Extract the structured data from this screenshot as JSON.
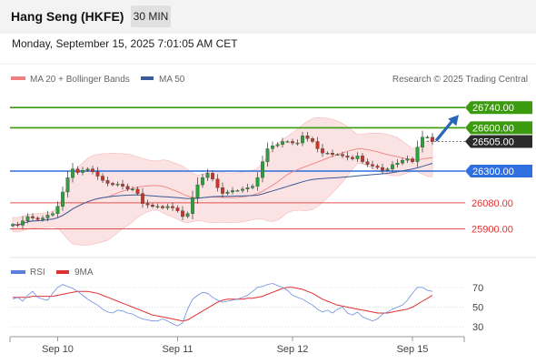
{
  "header": {
    "title": "Hang Seng (HKFE)",
    "timeframe": "30 MIN",
    "datetime": "Monday, September 15, 2025 7:01:05 AM CET"
  },
  "chart_data": [
    {
      "type": "candlestick",
      "title": "Hang Seng (HKFE)",
      "legend": [
        {
          "name": "MA 20 + Bollinger Bands",
          "color": "#f08080"
        },
        {
          "name": "MA 50",
          "color": "#3a5a9a"
        }
      ],
      "credit": "Research © 2025 Trading Central",
      "x_labels": [
        "Sep 10",
        "Sep 11",
        "Sep 12",
        "Sep 15"
      ],
      "y_range": [
        25720,
        26880
      ],
      "grid": false,
      "levels": [
        {
          "label": "26740.00",
          "value": 26740,
          "kind": "resistance",
          "color": "#3c9a0e"
        },
        {
          "label": "26600.00",
          "value": 26600,
          "kind": "resistance",
          "color": "#3c9a0e"
        },
        {
          "label": "26505.00",
          "value": 26505,
          "kind": "last",
          "color": "#2a2a2a"
        },
        {
          "label": "26300.00",
          "value": 26300,
          "kind": "pivot",
          "color": "#2f6fe0"
        },
        {
          "label": "26080.00",
          "value": 26080,
          "kind": "support",
          "color": "#e05050"
        },
        {
          "label": "25900.00",
          "value": 25900,
          "kind": "support",
          "color": "#e05050"
        }
      ],
      "closes": [
        25930,
        25925,
        25955,
        25985,
        25975,
        25965,
        25975,
        25995,
        26005,
        26055,
        26155,
        26255,
        26315,
        26290,
        26305,
        26315,
        26295,
        26265,
        26235,
        26215,
        26205,
        26210,
        26195,
        26175,
        26175,
        26145,
        26075,
        26065,
        26055,
        26055,
        26045,
        26055,
        26045,
        26025,
        25985,
        26005,
        26115,
        26205,
        26255,
        26285,
        26245,
        26185,
        26145,
        26155,
        26165,
        26165,
        26175,
        26185,
        26195,
        26255,
        26365,
        26455,
        26475,
        26485,
        26505,
        26505,
        26495,
        26495,
        26545,
        26525,
        26505,
        26455,
        26425,
        26425,
        26415,
        26415,
        26405,
        26395,
        26385,
        26405,
        26365,
        26345,
        26335,
        26325,
        26305,
        26315,
        26345,
        26355,
        26375,
        26385,
        26365,
        26465,
        26535,
        26535,
        26505
      ],
      "forecast_arrow": {
        "from": 26510,
        "to": 26740
      }
    },
    {
      "type": "line",
      "title": "RSI",
      "series": [
        {
          "name": "RSI",
          "color": "#5b7fd6"
        },
        {
          "name": "9MA",
          "color": "#e03030"
        }
      ],
      "y_ticks": [
        70,
        50,
        30
      ],
      "y_range": [
        20,
        80
      ],
      "rsi": [
        58,
        60,
        56,
        62,
        66,
        60,
        58,
        57,
        64,
        70,
        73,
        71,
        69,
        66,
        62,
        58,
        55,
        52,
        48,
        45,
        44,
        47,
        46,
        44,
        43,
        40,
        38,
        37,
        36,
        36,
        38,
        36,
        33,
        31,
        34,
        48,
        58,
        62,
        65,
        64,
        60,
        57,
        55,
        56,
        57,
        58,
        60,
        62,
        66,
        70,
        71,
        73,
        74,
        72,
        70,
        67,
        62,
        60,
        58,
        55,
        52,
        48,
        45,
        47,
        44,
        48,
        50,
        44,
        42,
        45,
        40,
        38,
        36,
        38,
        43,
        45,
        48,
        50,
        52,
        57,
        64,
        70,
        70,
        67,
        66
      ],
      "ma9": [
        60,
        60,
        60,
        60,
        61,
        61,
        61,
        61,
        61,
        62,
        63,
        64,
        65,
        66,
        66,
        66,
        65,
        64,
        62,
        60,
        58,
        56,
        54,
        52,
        50,
        48,
        46,
        44,
        42,
        41,
        40,
        39,
        38,
        37,
        36,
        37,
        40,
        43,
        46,
        49,
        52,
        55,
        57,
        58,
        58,
        58,
        58,
        59,
        59,
        60,
        61,
        63,
        65,
        67,
        69,
        70,
        70,
        69,
        68,
        66,
        64,
        61,
        58,
        56,
        54,
        52,
        51,
        50,
        49,
        48,
        47,
        46,
        45,
        44,
        44,
        44,
        45,
        46,
        47,
        48,
        50,
        53,
        56,
        59,
        62
      ]
    }
  ]
}
